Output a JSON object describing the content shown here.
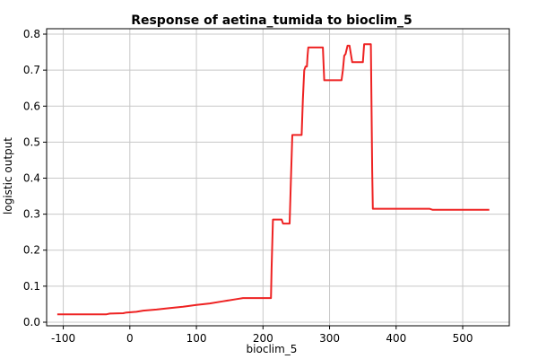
{
  "chart_data": {
    "type": "line",
    "title": "Response of aetina_tumida to bioclim_5",
    "xlabel": "bioclim_5",
    "ylabel": "logistic output",
    "xlim": [
      -125,
      570
    ],
    "ylim": [
      -0.01,
      0.815
    ],
    "x_ticks": [
      -100,
      0,
      100,
      200,
      300,
      400,
      500
    ],
    "y_ticks": [
      0.0,
      0.1,
      0.2,
      0.3,
      0.4,
      0.5,
      0.6,
      0.7,
      0.8
    ],
    "x_tick_labels": [
      "-100",
      "0",
      "100",
      "200",
      "300",
      "400",
      "500"
    ],
    "y_tick_labels": [
      "0.0",
      "0.1",
      "0.2",
      "0.3",
      "0.4",
      "0.5",
      "0.6",
      "0.7",
      "0.8"
    ],
    "grid": true,
    "series": [
      {
        "color": "#ee2222",
        "x": [
          -109,
          -35,
          -30,
          -10,
          -5,
          10,
          20,
          40,
          60,
          80,
          100,
          120,
          140,
          160,
          170,
          212,
          213,
          215,
          228,
          230,
          240,
          242,
          244,
          246,
          258,
          260,
          262,
          264,
          266,
          267,
          268,
          270,
          290,
          292,
          300,
          310,
          318,
          320,
          322,
          324,
          327,
          330,
          332,
          334,
          350,
          352,
          362,
          364,
          365,
          400,
          450,
          455,
          540
        ],
        "y": [
          0.022,
          0.022,
          0.024,
          0.025,
          0.027,
          0.029,
          0.032,
          0.035,
          0.039,
          0.043,
          0.048,
          0.052,
          0.058,
          0.064,
          0.067,
          0.067,
          0.15,
          0.285,
          0.285,
          0.274,
          0.274,
          0.4,
          0.52,
          0.52,
          0.52,
          0.62,
          0.7,
          0.71,
          0.71,
          0.74,
          0.763,
          0.763,
          0.763,
          0.672,
          0.672,
          0.672,
          0.672,
          0.7,
          0.74,
          0.745,
          0.768,
          0.768,
          0.745,
          0.722,
          0.722,
          0.772,
          0.772,
          0.42,
          0.315,
          0.315,
          0.315,
          0.312,
          0.312
        ]
      }
    ]
  }
}
